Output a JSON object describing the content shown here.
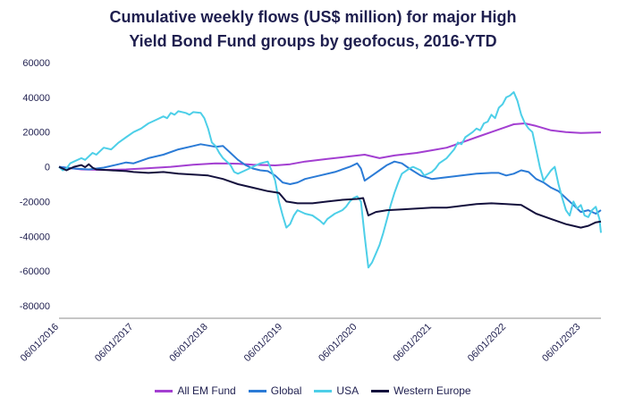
{
  "header": {
    "title_line1": "Cumulative weekly flows (US$ million) for major High",
    "title_line2": "Yield Bond Fund groups by geofocus, 2016-YTD"
  },
  "chart_data": {
    "type": "line",
    "title": "Cumulative weekly flows (US$ million) for major High Yield Bond Fund groups by geofocus, 2016-YTD",
    "xlabel": "",
    "ylabel": "",
    "ylim": [
      -80000,
      60000
    ],
    "yticks": [
      60000,
      40000,
      20000,
      0,
      -20000,
      -40000,
      -60000,
      -80000
    ],
    "xlim": [
      2016.0,
      2023.27
    ],
    "xticks": [
      {
        "x": 2016,
        "label": "06/01/2016"
      },
      {
        "x": 2017,
        "label": "06/01/2017"
      },
      {
        "x": 2018,
        "label": "06/01/2018"
      },
      {
        "x": 2019,
        "label": "06/01/2019"
      },
      {
        "x": 2020,
        "label": "06/01/2020"
      },
      {
        "x": 2021,
        "label": "06/01/2021"
      },
      {
        "x": 2022,
        "label": "06/01/2022"
      },
      {
        "x": 2023,
        "label": "06/01/2023"
      }
    ],
    "grid": false,
    "legend_position": "bottom",
    "series": [
      {
        "name": "All EM Fund",
        "color": "#a33fd1",
        "points": [
          [
            2016.0,
            0
          ],
          [
            2016.3,
            -1500
          ],
          [
            2016.6,
            -1800
          ],
          [
            2016.9,
            -1500
          ],
          [
            2017.2,
            -800
          ],
          [
            2017.5,
            0
          ],
          [
            2017.8,
            1200
          ],
          [
            2018.1,
            2000
          ],
          [
            2018.4,
            1800
          ],
          [
            2018.6,
            1200
          ],
          [
            2018.9,
            800
          ],
          [
            2019.1,
            1500
          ],
          [
            2019.3,
            3000
          ],
          [
            2019.6,
            4500
          ],
          [
            2019.9,
            6000
          ],
          [
            2020.1,
            7000
          ],
          [
            2020.3,
            5000
          ],
          [
            2020.5,
            6500
          ],
          [
            2020.8,
            8000
          ],
          [
            2021.0,
            9500
          ],
          [
            2021.2,
            11000
          ],
          [
            2021.4,
            14000
          ],
          [
            2021.6,
            17000
          ],
          [
            2021.8,
            20000
          ],
          [
            2022.0,
            23000
          ],
          [
            2022.1,
            24500
          ],
          [
            2022.25,
            25000
          ],
          [
            2022.4,
            23500
          ],
          [
            2022.6,
            21000
          ],
          [
            2022.8,
            20000
          ],
          [
            2023.0,
            19500
          ],
          [
            2023.27,
            19800
          ]
        ]
      },
      {
        "name": "Global",
        "color": "#2b7bd6",
        "points": [
          [
            2016.0,
            0
          ],
          [
            2016.2,
            -1000
          ],
          [
            2016.4,
            -1500
          ],
          [
            2016.6,
            -500
          ],
          [
            2016.8,
            1500
          ],
          [
            2016.9,
            2500
          ],
          [
            2017.0,
            2000
          ],
          [
            2017.2,
            5000
          ],
          [
            2017.4,
            7000
          ],
          [
            2017.6,
            10000
          ],
          [
            2017.8,
            12000
          ],
          [
            2017.9,
            13000
          ],
          [
            2018.1,
            11500
          ],
          [
            2018.2,
            12000
          ],
          [
            2018.3,
            8000
          ],
          [
            2018.4,
            4000
          ],
          [
            2018.5,
            1000
          ],
          [
            2018.6,
            -1000
          ],
          [
            2018.7,
            -2000
          ],
          [
            2018.8,
            -2500
          ],
          [
            2018.9,
            -5000
          ],
          [
            2019.0,
            -9000
          ],
          [
            2019.1,
            -10000
          ],
          [
            2019.2,
            -9000
          ],
          [
            2019.3,
            -7000
          ],
          [
            2019.5,
            -5000
          ],
          [
            2019.7,
            -3000
          ],
          [
            2019.9,
            0
          ],
          [
            2020.0,
            2000
          ],
          [
            2020.05,
            -1000
          ],
          [
            2020.1,
            -8000
          ],
          [
            2020.2,
            -5000
          ],
          [
            2020.3,
            -2000
          ],
          [
            2020.4,
            1000
          ],
          [
            2020.5,
            3000
          ],
          [
            2020.6,
            2000
          ],
          [
            2020.7,
            -1000
          ],
          [
            2020.85,
            -5000
          ],
          [
            2021.0,
            -7000
          ],
          [
            2021.2,
            -6000
          ],
          [
            2021.4,
            -5000
          ],
          [
            2021.6,
            -4000
          ],
          [
            2021.8,
            -3500
          ],
          [
            2021.9,
            -3500
          ],
          [
            2022.0,
            -5000
          ],
          [
            2022.1,
            -4000
          ],
          [
            2022.2,
            -2000
          ],
          [
            2022.3,
            -3000
          ],
          [
            2022.4,
            -7000
          ],
          [
            2022.5,
            -9000
          ],
          [
            2022.6,
            -12000
          ],
          [
            2022.7,
            -14000
          ],
          [
            2022.8,
            -18000
          ],
          [
            2022.9,
            -22000
          ],
          [
            2023.0,
            -26000
          ],
          [
            2023.1,
            -25000
          ],
          [
            2023.2,
            -27000
          ],
          [
            2023.27,
            -25000
          ]
        ]
      },
      {
        "name": "USA",
        "color": "#4dcfe8",
        "points": [
          [
            2016.0,
            0
          ],
          [
            2016.05,
            -2000
          ],
          [
            2016.1,
            -1000
          ],
          [
            2016.15,
            2000
          ],
          [
            2016.2,
            3000
          ],
          [
            2016.3,
            5000
          ],
          [
            2016.35,
            4000
          ],
          [
            2016.45,
            8000
          ],
          [
            2016.5,
            7000
          ],
          [
            2016.6,
            11000
          ],
          [
            2016.7,
            10000
          ],
          [
            2016.8,
            14000
          ],
          [
            2016.9,
            17000
          ],
          [
            2017.0,
            20000
          ],
          [
            2017.1,
            22000
          ],
          [
            2017.2,
            25000
          ],
          [
            2017.3,
            27000
          ],
          [
            2017.4,
            29000
          ],
          [
            2017.45,
            28000
          ],
          [
            2017.5,
            31000
          ],
          [
            2017.55,
            30000
          ],
          [
            2017.6,
            32000
          ],
          [
            2017.7,
            31000
          ],
          [
            2017.75,
            30000
          ],
          [
            2017.8,
            31500
          ],
          [
            2017.9,
            31000
          ],
          [
            2017.95,
            28000
          ],
          [
            2018.0,
            22000
          ],
          [
            2018.05,
            14000
          ],
          [
            2018.1,
            12000
          ],
          [
            2018.15,
            8000
          ],
          [
            2018.2,
            5000
          ],
          [
            2018.3,
            1000
          ],
          [
            2018.35,
            -3000
          ],
          [
            2018.4,
            -4000
          ],
          [
            2018.5,
            -2000
          ],
          [
            2018.6,
            0
          ],
          [
            2018.7,
            2000
          ],
          [
            2018.8,
            3000
          ],
          [
            2018.85,
            -2000
          ],
          [
            2018.9,
            -8000
          ],
          [
            2018.95,
            -20000
          ],
          [
            2019.0,
            -28000
          ],
          [
            2019.05,
            -35000
          ],
          [
            2019.1,
            -33000
          ],
          [
            2019.15,
            -28000
          ],
          [
            2019.2,
            -25000
          ],
          [
            2019.3,
            -27000
          ],
          [
            2019.4,
            -28000
          ],
          [
            2019.5,
            -31000
          ],
          [
            2019.55,
            -33000
          ],
          [
            2019.6,
            -30000
          ],
          [
            2019.7,
            -27000
          ],
          [
            2019.8,
            -25000
          ],
          [
            2019.85,
            -23000
          ],
          [
            2019.9,
            -20000
          ],
          [
            2019.95,
            -18000
          ],
          [
            2020.0,
            -17000
          ],
          [
            2020.05,
            -20000
          ],
          [
            2020.1,
            -40000
          ],
          [
            2020.15,
            -58000
          ],
          [
            2020.2,
            -55000
          ],
          [
            2020.25,
            -50000
          ],
          [
            2020.3,
            -45000
          ],
          [
            2020.35,
            -38000
          ],
          [
            2020.4,
            -30000
          ],
          [
            2020.45,
            -22000
          ],
          [
            2020.5,
            -15000
          ],
          [
            2020.55,
            -9000
          ],
          [
            2020.6,
            -4000
          ],
          [
            2020.7,
            -1000
          ],
          [
            2020.75,
            0
          ],
          [
            2020.85,
            -2000
          ],
          [
            2020.9,
            -5000
          ],
          [
            2021.0,
            -3000
          ],
          [
            2021.05,
            -1000
          ],
          [
            2021.1,
            2000
          ],
          [
            2021.2,
            5000
          ],
          [
            2021.3,
            10000
          ],
          [
            2021.35,
            14000
          ],
          [
            2021.4,
            13000
          ],
          [
            2021.45,
            17000
          ],
          [
            2021.55,
            20000
          ],
          [
            2021.6,
            22000
          ],
          [
            2021.65,
            21000
          ],
          [
            2021.7,
            25000
          ],
          [
            2021.75,
            26000
          ],
          [
            2021.8,
            30000
          ],
          [
            2021.85,
            28000
          ],
          [
            2021.9,
            34000
          ],
          [
            2021.95,
            36000
          ],
          [
            2022.0,
            40000
          ],
          [
            2022.05,
            41000
          ],
          [
            2022.1,
            43000
          ],
          [
            2022.15,
            38000
          ],
          [
            2022.2,
            30000
          ],
          [
            2022.25,
            25000
          ],
          [
            2022.3,
            22000
          ],
          [
            2022.35,
            20000
          ],
          [
            2022.4,
            10000
          ],
          [
            2022.45,
            0
          ],
          [
            2022.5,
            -8000
          ],
          [
            2022.55,
            -5000
          ],
          [
            2022.6,
            -2000
          ],
          [
            2022.65,
            0
          ],
          [
            2022.7,
            -10000
          ],
          [
            2022.75,
            -18000
          ],
          [
            2022.8,
            -25000
          ],
          [
            2022.85,
            -28000
          ],
          [
            2022.9,
            -20000
          ],
          [
            2022.95,
            -24000
          ],
          [
            2023.0,
            -22000
          ],
          [
            2023.05,
            -28000
          ],
          [
            2023.1,
            -29000
          ],
          [
            2023.15,
            -25000
          ],
          [
            2023.2,
            -23000
          ],
          [
            2023.25,
            -30000
          ],
          [
            2023.27,
            -38000
          ]
        ]
      },
      {
        "name": "Western Europe",
        "color": "#14113d",
        "points": [
          [
            2016.0,
            0
          ],
          [
            2016.1,
            -2000
          ],
          [
            2016.2,
            0
          ],
          [
            2016.3,
            1000
          ],
          [
            2016.35,
            -200
          ],
          [
            2016.4,
            1500
          ],
          [
            2016.45,
            -500
          ],
          [
            2016.5,
            -1500
          ],
          [
            2016.7,
            -2000
          ],
          [
            2016.9,
            -2500
          ],
          [
            2017.0,
            -3000
          ],
          [
            2017.2,
            -3500
          ],
          [
            2017.4,
            -3000
          ],
          [
            2017.6,
            -4000
          ],
          [
            2017.8,
            -4500
          ],
          [
            2018.0,
            -5000
          ],
          [
            2018.2,
            -7000
          ],
          [
            2018.4,
            -10000
          ],
          [
            2018.6,
            -12000
          ],
          [
            2018.8,
            -14000
          ],
          [
            2018.95,
            -15000
          ],
          [
            2019.05,
            -20000
          ],
          [
            2019.2,
            -21000
          ],
          [
            2019.4,
            -21000
          ],
          [
            2019.6,
            -20000
          ],
          [
            2019.8,
            -19000
          ],
          [
            2020.0,
            -18500
          ],
          [
            2020.08,
            -18000
          ],
          [
            2020.15,
            -28000
          ],
          [
            2020.25,
            -26000
          ],
          [
            2020.4,
            -25000
          ],
          [
            2020.6,
            -24500
          ],
          [
            2020.8,
            -24000
          ],
          [
            2021.0,
            -23500
          ],
          [
            2021.2,
            -23500
          ],
          [
            2021.4,
            -22500
          ],
          [
            2021.6,
            -21500
          ],
          [
            2021.8,
            -21000
          ],
          [
            2022.0,
            -21500
          ],
          [
            2022.2,
            -22000
          ],
          [
            2022.4,
            -27000
          ],
          [
            2022.6,
            -30000
          ],
          [
            2022.8,
            -33000
          ],
          [
            2023.0,
            -35000
          ],
          [
            2023.1,
            -34000
          ],
          [
            2023.2,
            -32000
          ],
          [
            2023.27,
            -31500
          ]
        ]
      }
    ]
  }
}
